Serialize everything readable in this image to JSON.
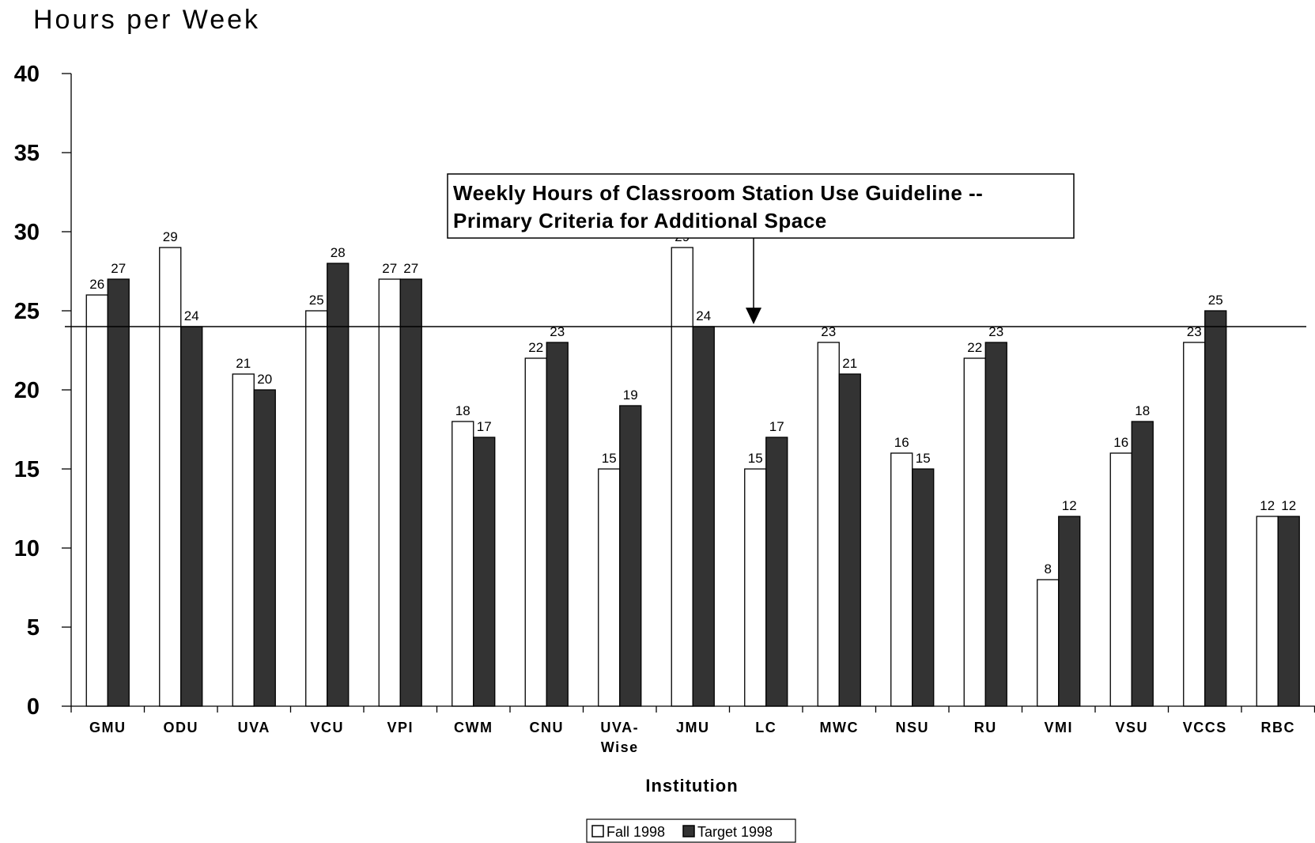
{
  "chart_data": {
    "type": "bar",
    "ylabel": "Hours per Week",
    "xlabel": "Institution",
    "ylim": [
      0,
      40
    ],
    "yticks": [
      0,
      5,
      10,
      15,
      20,
      25,
      30,
      35,
      40
    ],
    "grid": false,
    "legend_position": "bottom-center",
    "categories": [
      "GMU",
      "ODU",
      "UVA",
      "VCU",
      "VPI",
      "CWM",
      "CNU",
      "UVA-\nWise",
      "JMU",
      "LC",
      "MWC",
      "NSU",
      "RU",
      "VMI",
      "VSU",
      "VCCS",
      "RBC"
    ],
    "series": [
      {
        "name": "Fall 1998",
        "color": "#ffffff",
        "values": [
          26,
          29,
          21,
          25,
          27,
          18,
          22,
          15,
          29,
          15,
          23,
          16,
          22,
          8,
          16,
          23,
          12
        ]
      },
      {
        "name": "Target 1998",
        "color": "#333333",
        "values": [
          27,
          24,
          20,
          28,
          27,
          17,
          23,
          19,
          24,
          17,
          21,
          15,
          23,
          12,
          18,
          25,
          12
        ]
      }
    ],
    "reference_line": {
      "value": 24
    },
    "annotation": {
      "lines": [
        "Weekly Hours of Classroom Station Use Guideline --",
        "Primary Criteria for Additional Space"
      ]
    }
  }
}
